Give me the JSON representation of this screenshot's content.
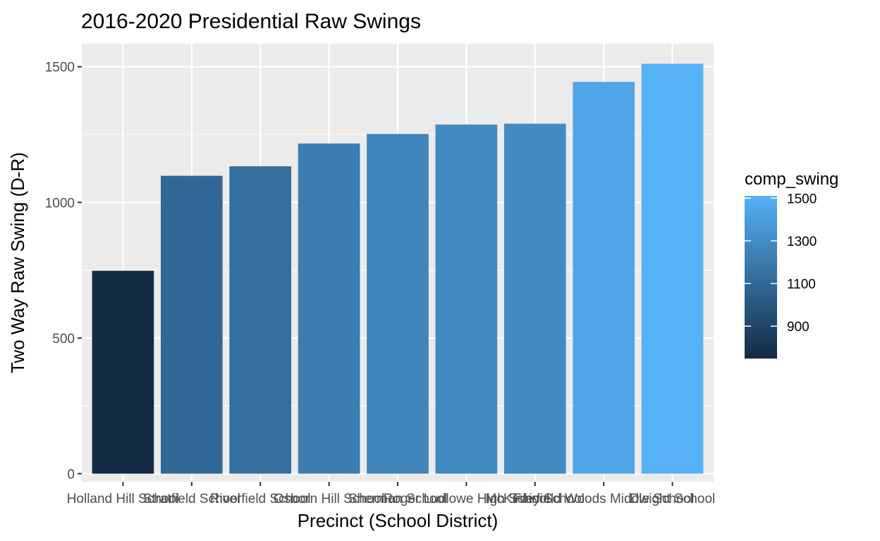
{
  "chart_data": {
    "type": "bar",
    "title": "2016-2020 Presidential Raw Swings",
    "xlabel": "Precinct (School District)",
    "ylabel": "Two Way Raw Swing (D-R)",
    "categories": [
      "Holland Hill School",
      "Stratfield School",
      "Riverfield School",
      "Osborn Hill School",
      "Sherman School",
      "Roger Ludlowe High School",
      "McKinley School",
      "Fairfield Woods Middle School",
      "Dwight School"
    ],
    "values": [
      748,
      1098,
      1133,
      1217,
      1252,
      1287,
      1290,
      1444,
      1511
    ],
    "ylim": [
      -30,
      1585
    ],
    "yticks": [
      0,
      500,
      1000,
      1500
    ],
    "grid": true,
    "legend": {
      "title": "comp_swing",
      "position": "right",
      "ticks": [
        900,
        1100,
        1300,
        1500
      ],
      "range": [
        748,
        1511
      ],
      "color_low": "#132B43",
      "color_high": "#56B1F7"
    },
    "colors": {
      "panel": "#EBEBEB",
      "grid": "#FFFFFF",
      "tick_text": "#4D4D4D"
    }
  }
}
